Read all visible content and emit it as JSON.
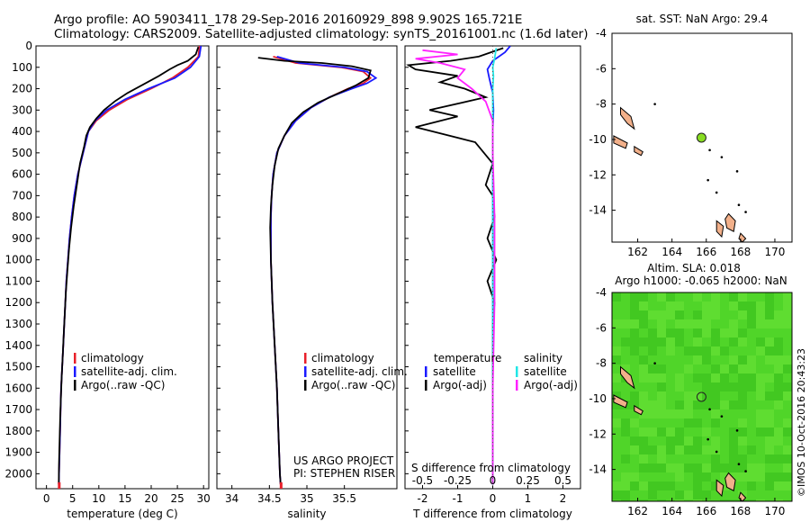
{
  "header": {
    "line1": "Argo profile: AO 5903411_178 29-Sep-2016 20160929_898 9.902S 165.721E",
    "line2": "Climatology: CARS2009. Satellite-adjusted climatology: synTS_20161001.nc (1.6d later)"
  },
  "colors": {
    "climatology": "#e8202a",
    "satellite": "#1a1aff",
    "argo": "#000000",
    "salinity_sat": "#22e6e6",
    "salinity_argo": "#ff22ff",
    "land": "#f2b08a",
    "argo_marker": "#88dd22",
    "sla_field": "#4cd22a"
  },
  "chart_data": [
    {
      "type": "line",
      "panel": "temperature",
      "xlabel": "temperature (deg C)",
      "ylabel": "",
      "xlim": [
        -2,
        31
      ],
      "ylim": [
        2070,
        0
      ],
      "xticks": [
        0,
        5,
        10,
        15,
        20,
        25,
        30
      ],
      "yticks": [
        0,
        100,
        200,
        300,
        400,
        500,
        600,
        700,
        800,
        900,
        1000,
        1100,
        1200,
        1300,
        1400,
        1500,
        1600,
        1700,
        1800,
        1900,
        2000
      ],
      "legend": [
        "climatology",
        "satellite-adj. clim.",
        "Argo(..raw -QC)"
      ],
      "legend_position": "lower-right",
      "series": [
        {
          "name": "climatology",
          "color": "#e8202a",
          "points": [
            [
              29.2,
              0
            ],
            [
              29.0,
              50
            ],
            [
              27.0,
              100
            ],
            [
              24.0,
              150
            ],
            [
              20.0,
              200
            ],
            [
              15.5,
              250
            ],
            [
              12.0,
              300
            ],
            [
              9.5,
              350
            ],
            [
              8.0,
              400
            ],
            [
              7.0,
              500
            ],
            [
              6.0,
              600
            ],
            [
              5.3,
              700
            ],
            [
              4.8,
              800
            ],
            [
              4.4,
              900
            ],
            [
              4.1,
              1000
            ],
            [
              3.8,
              1100
            ],
            [
              3.6,
              1200
            ],
            [
              3.4,
              1300
            ],
            [
              3.2,
              1400
            ],
            [
              3.0,
              1500
            ],
            [
              2.8,
              1600
            ],
            [
              2.7,
              1700
            ],
            [
              2.6,
              1800
            ],
            [
              2.5,
              1900
            ],
            [
              2.4,
              2000
            ],
            [
              2.35,
              2050
            ]
          ]
        },
        {
          "name": "satellite-adj. clim.",
          "color": "#1a1aff",
          "points": [
            [
              29.5,
              0
            ],
            [
              29.2,
              50
            ],
            [
              27.5,
              100
            ],
            [
              24.5,
              150
            ],
            [
              19.5,
              200
            ],
            [
              15.0,
              250
            ],
            [
              11.5,
              300
            ],
            [
              9.3,
              350
            ],
            [
              8.0,
              400
            ],
            [
              7.0,
              500
            ],
            [
              6.0,
              600
            ],
            [
              5.3,
              700
            ],
            [
              4.8,
              800
            ],
            [
              4.4,
              900
            ],
            [
              4.1,
              1000
            ],
            [
              3.8,
              1100
            ],
            [
              3.6,
              1200
            ],
            [
              3.4,
              1300
            ],
            [
              3.2,
              1400
            ],
            [
              3.0,
              1500
            ],
            [
              2.8,
              1600
            ],
            [
              2.7,
              1700
            ],
            [
              2.6,
              1800
            ],
            [
              2.5,
              1900
            ],
            [
              2.4,
              2000
            ],
            [
              2.35,
              2050
            ]
          ]
        },
        {
          "name": "Argo(..raw -QC)",
          "color": "#000000",
          "points": [
            [
              29.0,
              5
            ],
            [
              28.5,
              40
            ],
            [
              27.0,
              70
            ],
            [
              25.0,
              90
            ],
            [
              23.5,
              110
            ],
            [
              21.5,
              140
            ],
            [
              18.5,
              180
            ],
            [
              15.5,
              220
            ],
            [
              13.0,
              260
            ],
            [
              11.0,
              300
            ],
            [
              9.5,
              340
            ],
            [
              8.3,
              380
            ],
            [
              7.6,
              420
            ],
            [
              7.2,
              470
            ],
            [
              6.4,
              550
            ],
            [
              5.8,
              650
            ],
            [
              5.2,
              750
            ],
            [
              4.7,
              850
            ],
            [
              4.3,
              950
            ],
            [
              4.0,
              1050
            ],
            [
              3.7,
              1150
            ],
            [
              3.5,
              1250
            ],
            [
              3.3,
              1350
            ],
            [
              3.1,
              1450
            ],
            [
              2.9,
              1550
            ],
            [
              2.75,
              1650
            ],
            [
              2.6,
              1750
            ],
            [
              2.5,
              1850
            ],
            [
              2.4,
              1950
            ],
            [
              2.35,
              2050
            ]
          ]
        }
      ]
    },
    {
      "type": "line",
      "panel": "salinity",
      "xlabel": "salinity",
      "ylabel": "",
      "xlim": [
        33.8,
        36.2
      ],
      "ylim": [
        2070,
        0
      ],
      "xticks": [
        34,
        34.5,
        35,
        35.5
      ],
      "xtick_labels": [
        "34",
        "34.5",
        "35",
        "35.5"
      ],
      "legend": [
        "climatology",
        "satellite-adj. clim.",
        "Argo(..raw -QC)"
      ],
      "legend_position": "lower-right",
      "annotation": [
        "US ARGO PROJECT",
        "PI: STEPHEN RISER"
      ],
      "series": [
        {
          "name": "climatology",
          "color": "#e8202a",
          "points": [
            [
              34.55,
              50
            ],
            [
              34.85,
              80
            ],
            [
              35.45,
              100
            ],
            [
              35.75,
              120
            ],
            [
              35.85,
              150
            ],
            [
              35.75,
              175
            ],
            [
              35.55,
              200
            ],
            [
              35.3,
              240
            ],
            [
              35.05,
              290
            ],
            [
              34.85,
              350
            ],
            [
              34.7,
              420
            ],
            [
              34.6,
              500
            ],
            [
              34.55,
              600
            ],
            [
              34.53,
              700
            ],
            [
              34.52,
              800
            ],
            [
              34.52,
              1000
            ],
            [
              34.54,
              1200
            ],
            [
              34.57,
              1400
            ],
            [
              34.6,
              1600
            ],
            [
              34.62,
              1800
            ],
            [
              34.64,
              2000
            ],
            [
              34.65,
              2050
            ]
          ]
        },
        {
          "name": "satellite-adj. clim.",
          "color": "#1a1aff",
          "points": [
            [
              34.6,
              50
            ],
            [
              34.9,
              80
            ],
            [
              35.5,
              100
            ],
            [
              35.8,
              120
            ],
            [
              35.92,
              150
            ],
            [
              35.8,
              175
            ],
            [
              35.6,
              200
            ],
            [
              35.3,
              240
            ],
            [
              35.05,
              290
            ],
            [
              34.85,
              350
            ],
            [
              34.7,
              420
            ],
            [
              34.6,
              500
            ],
            [
              34.55,
              600
            ],
            [
              34.53,
              700
            ],
            [
              34.52,
              800
            ],
            [
              34.52,
              1000
            ],
            [
              34.54,
              1200
            ],
            [
              34.57,
              1400
            ],
            [
              34.6,
              1600
            ],
            [
              34.62,
              1800
            ],
            [
              34.64,
              2000
            ],
            [
              34.65,
              2050
            ]
          ]
        },
        {
          "name": "Argo(..raw -QC)",
          "color": "#000000",
          "points": [
            [
              34.35,
              55
            ],
            [
              34.7,
              70
            ],
            [
              35.2,
              80
            ],
            [
              35.6,
              95
            ],
            [
              35.85,
              115
            ],
            [
              35.82,
              150
            ],
            [
              35.65,
              185
            ],
            [
              35.4,
              225
            ],
            [
              35.15,
              265
            ],
            [
              34.95,
              310
            ],
            [
              34.8,
              360
            ],
            [
              34.7,
              420
            ],
            [
              34.62,
              480
            ],
            [
              34.57,
              560
            ],
            [
              34.54,
              650
            ],
            [
              34.52,
              750
            ],
            [
              34.51,
              850
            ],
            [
              34.52,
              1000
            ],
            [
              34.54,
              1200
            ],
            [
              34.57,
              1400
            ],
            [
              34.6,
              1600
            ],
            [
              34.62,
              1800
            ],
            [
              34.64,
              2000
            ],
            [
              34.65,
              2050
            ]
          ]
        }
      ]
    },
    {
      "type": "line",
      "panel": "difference",
      "xlabel": "T difference from climatology",
      "x2label": "S difference from climatology",
      "xlim": [
        -2.5,
        2.5
      ],
      "ylim": [
        2070,
        0
      ],
      "xticks": [
        -2,
        -1,
        0,
        1,
        2
      ],
      "xtick_labels": [
        "-2",
        "-1",
        "0",
        "1",
        "2"
      ],
      "x2ticks": [
        -0.5,
        -0.25,
        0,
        0.25,
        0.5
      ],
      "x2tick_labels": [
        "-0.5",
        "-0.25",
        "0",
        "0.25",
        "0.5"
      ],
      "x2_scale": 4,
      "legend_temperature": [
        "temperature",
        "satellite",
        "Argo(-adj)"
      ],
      "legend_salinity": [
        "salinity",
        "satellite",
        "Argo(-adj)"
      ],
      "series": [
        {
          "name": "satellite",
          "color": "#1a1aff",
          "points": [
            [
              0.5,
              0
            ],
            [
              0.35,
              30
            ],
            [
              0.0,
              70
            ],
            [
              -0.15,
              110
            ],
            [
              -0.1,
              150
            ],
            [
              0.0,
              220
            ],
            [
              0.02,
              300
            ],
            [
              0.0,
              400
            ],
            [
              0.0,
              600
            ],
            [
              0.0,
              1000
            ],
            [
              0.0,
              1500
            ],
            [
              0.0,
              2050
            ]
          ]
        },
        {
          "name": "Argo(-adj)",
          "color": "#000000",
          "points": [
            [
              0.3,
              10
            ],
            [
              -0.4,
              50
            ],
            [
              -1.2,
              70
            ],
            [
              -2.4,
              90
            ],
            [
              -2.2,
              110
            ],
            [
              -1.0,
              140
            ],
            [
              -1.5,
              170
            ],
            [
              -0.8,
              200
            ],
            [
              -0.2,
              240
            ],
            [
              -1.8,
              300
            ],
            [
              -1.0,
              330
            ],
            [
              -2.2,
              380
            ],
            [
              -0.5,
              450
            ],
            [
              0.0,
              550
            ],
            [
              -0.2,
              650
            ],
            [
              0.0,
              700
            ],
            [
              0.05,
              800
            ],
            [
              -0.15,
              900
            ],
            [
              0.1,
              1000
            ],
            [
              -0.15,
              1100
            ],
            [
              0.05,
              1200
            ],
            [
              0.0,
              1300
            ],
            [
              0.0,
              1500
            ],
            [
              0.0,
              1700
            ],
            [
              0.0,
              1900
            ],
            [
              0.0,
              2050
            ]
          ]
        },
        {
          "name": "satellite (salinity)",
          "color": "#22e6e6",
          "points": [
            [
              0.1,
              10
            ],
            [
              0.05,
              60
            ],
            [
              0.0,
              100
            ],
            [
              0.02,
              140
            ],
            [
              0.0,
              200
            ],
            [
              0.0,
              400
            ],
            [
              0.0,
              800
            ],
            [
              0.0,
              1200
            ],
            [
              0.0,
              1600
            ],
            [
              0.0,
              2050
            ]
          ]
        },
        {
          "name": "Argo(-adj) (salinity)",
          "color": "#ff22ff",
          "points": [
            [
              -2.0,
              20
            ],
            [
              -1.0,
              40
            ],
            [
              -2.2,
              60
            ],
            [
              -1.5,
              80
            ],
            [
              -0.8,
              110
            ],
            [
              -1.0,
              150
            ],
            [
              -0.6,
              200
            ],
            [
              -0.2,
              260
            ],
            [
              0.0,
              350
            ],
            [
              0.0,
              500
            ],
            [
              0.05,
              800
            ],
            [
              0.05,
              1200
            ],
            [
              0.0,
              1600
            ],
            [
              0.0,
              2050
            ]
          ]
        }
      ]
    },
    {
      "type": "scatter",
      "panel": "sst_map",
      "title": "sat. SST: NaN Argo: 29.4",
      "xlim": [
        160.5,
        171
      ],
      "ylim": [
        -15.8,
        -4
      ],
      "xticks": [
        162,
        164,
        166,
        168,
        170
      ],
      "yticks": [
        -4,
        -6,
        -8,
        -10,
        -12,
        -14
      ],
      "argo_position": [
        165.72,
        -9.9
      ]
    },
    {
      "type": "heatmap",
      "panel": "sla_map",
      "title_line1": "Altim. SLA: 0.018",
      "title_line2": "Argo h1000: -0.065 h2000: NaN",
      "xlim": [
        160.5,
        171
      ],
      "ylim": [
        -15.8,
        -4
      ],
      "xticks": [
        162,
        164,
        166,
        168,
        170
      ],
      "yticks": [
        -4,
        -6,
        -8,
        -10,
        -12,
        -14
      ],
      "argo_position": [
        165.72,
        -9.9
      ],
      "credit": "©IMOS 10-Oct-2016 20:43:23"
    }
  ]
}
